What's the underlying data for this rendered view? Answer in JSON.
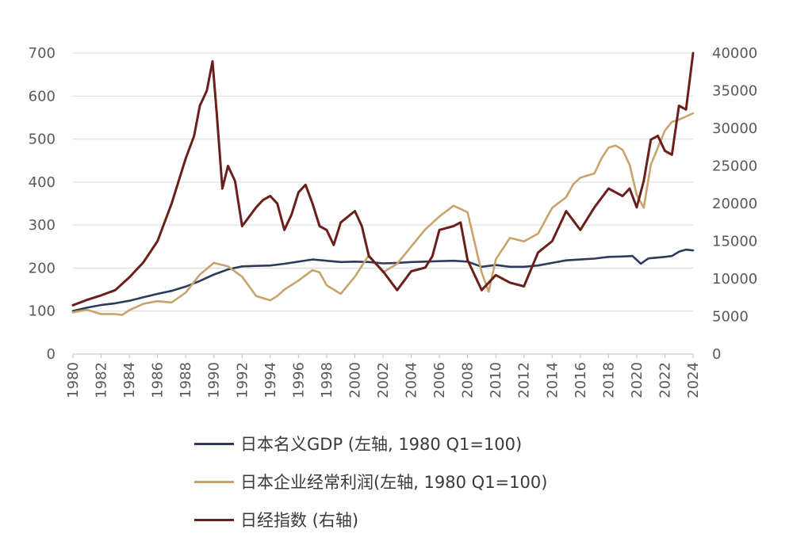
{
  "chart_data": {
    "type": "line",
    "x_tick_labels": [
      "1980",
      "1982",
      "1984",
      "1986",
      "1988",
      "1990",
      "1992",
      "1994",
      "1996",
      "1998",
      "2000",
      "2002",
      "2004",
      "2006",
      "2008",
      "2010",
      "2012",
      "2014",
      "2016",
      "2018",
      "2020",
      "2022",
      "2024"
    ],
    "y_left": {
      "ticks": [
        "0",
        "100",
        "200",
        "300",
        "400",
        "500",
        "600",
        "700"
      ],
      "range": [
        0,
        700
      ]
    },
    "y_right": {
      "ticks": [
        "0",
        "5000",
        "10000",
        "15000",
        "20000",
        "25000",
        "30000",
        "35000",
        "40000"
      ],
      "range": [
        0,
        40000
      ]
    },
    "xlim": [
      1980,
      2024
    ],
    "grid": true,
    "legend_position": "bottom",
    "series": [
      {
        "name": "日本名义GDP (左轴, 1980 Q1=100)",
        "axis": "left",
        "color": "#2e3a5c",
        "points": [
          [
            1980,
            100
          ],
          [
            1981,
            108
          ],
          [
            1982,
            114
          ],
          [
            1983,
            118
          ],
          [
            1984,
            124
          ],
          [
            1985,
            132
          ],
          [
            1986,
            140
          ],
          [
            1987,
            147
          ],
          [
            1988,
            157
          ],
          [
            1989,
            170
          ],
          [
            1990,
            185
          ],
          [
            1991,
            197
          ],
          [
            1992,
            204
          ],
          [
            1993,
            205
          ],
          [
            1994,
            206
          ],
          [
            1995,
            210
          ],
          [
            1996,
            215
          ],
          [
            1997,
            220
          ],
          [
            1998,
            217
          ],
          [
            1999,
            214
          ],
          [
            2000,
            215
          ],
          [
            2001,
            214
          ],
          [
            2002,
            211
          ],
          [
            2003,
            212
          ],
          [
            2004,
            214
          ],
          [
            2005,
            215
          ],
          [
            2006,
            216
          ],
          [
            2007,
            217
          ],
          [
            2008,
            215
          ],
          [
            2009,
            203
          ],
          [
            2010,
            207
          ],
          [
            2011,
            203
          ],
          [
            2012,
            203
          ],
          [
            2013,
            206
          ],
          [
            2014,
            212
          ],
          [
            2015,
            218
          ],
          [
            2016,
            220
          ],
          [
            2017,
            222
          ],
          [
            2018,
            226
          ],
          [
            2019,
            227
          ],
          [
            2019.7,
            228
          ],
          [
            2020.3,
            210
          ],
          [
            2020.8,
            222
          ],
          [
            2021,
            223
          ],
          [
            2022,
            226
          ],
          [
            2022.5,
            228
          ],
          [
            2023,
            238
          ],
          [
            2023.5,
            243
          ],
          [
            2024,
            241
          ]
        ]
      },
      {
        "name": "日本企业经常利润(左轴, 1980 Q1=100)",
        "axis": "left",
        "color": "#c6a46c",
        "points": [
          [
            1980,
            97
          ],
          [
            1981,
            103
          ],
          [
            1982,
            93
          ],
          [
            1983,
            93
          ],
          [
            1983.5,
            91
          ],
          [
            1984,
            102
          ],
          [
            1985,
            117
          ],
          [
            1986,
            123
          ],
          [
            1987,
            120
          ],
          [
            1988,
            143
          ],
          [
            1989,
            185
          ],
          [
            1990,
            212
          ],
          [
            1991,
            204
          ],
          [
            1992,
            180
          ],
          [
            1993,
            135
          ],
          [
            1994,
            125
          ],
          [
            1994.5,
            135
          ],
          [
            1995,
            150
          ],
          [
            1996,
            171
          ],
          [
            1997,
            195
          ],
          [
            1997.5,
            190
          ],
          [
            1998,
            160
          ],
          [
            1999,
            140
          ],
          [
            2000,
            180
          ],
          [
            2001,
            230
          ],
          [
            2002,
            190
          ],
          [
            2003,
            210
          ],
          [
            2004,
            250
          ],
          [
            2005,
            290
          ],
          [
            2006,
            320
          ],
          [
            2007,
            345
          ],
          [
            2008,
            330
          ],
          [
            2009,
            190
          ],
          [
            2009.5,
            145
          ],
          [
            2010,
            220
          ],
          [
            2011,
            270
          ],
          [
            2012,
            262
          ],
          [
            2013,
            280
          ],
          [
            2014,
            340
          ],
          [
            2015,
            365
          ],
          [
            2015.5,
            395
          ],
          [
            2016,
            410
          ],
          [
            2017,
            420
          ],
          [
            2017.5,
            455
          ],
          [
            2018,
            480
          ],
          [
            2018.5,
            485
          ],
          [
            2019,
            475
          ],
          [
            2019.5,
            440
          ],
          [
            2020,
            370
          ],
          [
            2020.5,
            340
          ],
          [
            2021,
            440
          ],
          [
            2022,
            520
          ],
          [
            2022.5,
            540
          ],
          [
            2023,
            545
          ],
          [
            2024,
            560
          ]
        ]
      },
      {
        "name": "日经指数 (右轴)",
        "axis": "right",
        "color": "#6b1f1a",
        "points": [
          [
            1980,
            6500
          ],
          [
            1981,
            7200
          ],
          [
            1982,
            7800
          ],
          [
            1983,
            8500
          ],
          [
            1984,
            10200
          ],
          [
            1985,
            12200
          ],
          [
            1986,
            15000
          ],
          [
            1987,
            20000
          ],
          [
            1988,
            26000
          ],
          [
            1988.6,
            29000
          ],
          [
            1989,
            33000
          ],
          [
            1989.5,
            35000
          ],
          [
            1989.9,
            38900
          ],
          [
            1990.2,
            32000
          ],
          [
            1990.6,
            22000
          ],
          [
            1991,
            25000
          ],
          [
            1991.5,
            23000
          ],
          [
            1992,
            17000
          ],
          [
            1993,
            19500
          ],
          [
            1993.5,
            20500
          ],
          [
            1994,
            21000
          ],
          [
            1994.5,
            20000
          ],
          [
            1995,
            16500
          ],
          [
            1995.5,
            18500
          ],
          [
            1996,
            21500
          ],
          [
            1996.5,
            22500
          ],
          [
            1997,
            20000
          ],
          [
            1997.5,
            17000
          ],
          [
            1998,
            16500
          ],
          [
            1998.5,
            14500
          ],
          [
            1999,
            17500
          ],
          [
            2000,
            19000
          ],
          [
            2000.5,
            17000
          ],
          [
            2001,
            13000
          ],
          [
            2002,
            11000
          ],
          [
            2003,
            8500
          ],
          [
            2004,
            11000
          ],
          [
            2005,
            11500
          ],
          [
            2005.5,
            13000
          ],
          [
            2006,
            16500
          ],
          [
            2007,
            17000
          ],
          [
            2007.5,
            17500
          ],
          [
            2008,
            12500
          ],
          [
            2008.5,
            10500
          ],
          [
            2009,
            8500
          ],
          [
            2010,
            10500
          ],
          [
            2011,
            9500
          ],
          [
            2012,
            9000
          ],
          [
            2013,
            13500
          ],
          [
            2014,
            15000
          ],
          [
            2015,
            19000
          ],
          [
            2016,
            16500
          ],
          [
            2017,
            19500
          ],
          [
            2018,
            22000
          ],
          [
            2018.5,
            21500
          ],
          [
            2019,
            21000
          ],
          [
            2019.5,
            22000
          ],
          [
            2020,
            19500
          ],
          [
            2020.5,
            23000
          ],
          [
            2021,
            28500
          ],
          [
            2021.5,
            29000
          ],
          [
            2022,
            27000
          ],
          [
            2022.5,
            26500
          ],
          [
            2023,
            33000
          ],
          [
            2023.5,
            32500
          ],
          [
            2024,
            40000
          ]
        ]
      }
    ]
  }
}
